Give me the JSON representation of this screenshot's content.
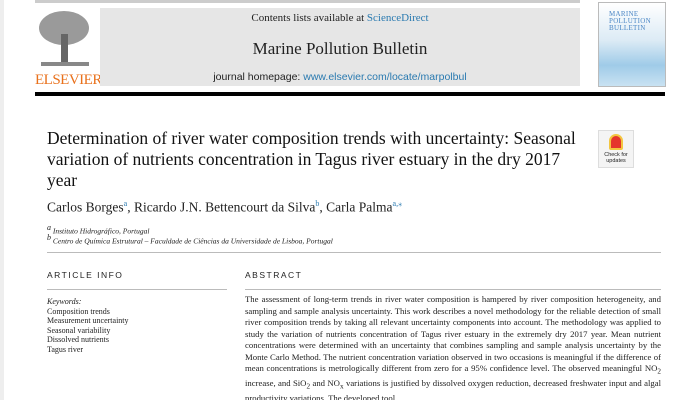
{
  "header": {
    "contents_prefix": "Contents lists available at ",
    "sciencedirect": "ScienceDirect",
    "journal_title": "Marine Pollution Bulletin",
    "homepage_label": "journal homepage: ",
    "homepage_url": "www.elsevier.com/locate/marpolbul",
    "publisher": "ELSEVIER",
    "cover_title": "MARINE POLLUTION BULLETIN"
  },
  "colors": {
    "elsevier_orange": "#e9711c",
    "link_blue": "#2a7ab0"
  },
  "article": {
    "title": "Determination of river water composition trends with uncertainty: Seasonal variation of nutrients concentration in Tagus river estuary in the dry 2017 year",
    "check_updates": "Check for updates",
    "authors": [
      {
        "name": "Carlos Borges",
        "sup": "a"
      },
      {
        "name": "Ricardo J.N. Bettencourt da Silva",
        "sup": "b"
      },
      {
        "name": "Carla Palma",
        "sup": "a,⁎"
      }
    ],
    "affiliations": [
      {
        "sup": "a",
        "text": "Instituto Hidrográfico, Portugal"
      },
      {
        "sup": "b",
        "text": "Centro de Química Estrutural – Faculdade de Ciências da Universidade de Lisboa, Portugal"
      }
    ],
    "article_info_heading": "ARTICLE INFO",
    "abstract_heading": "ABSTRACT",
    "keywords_label": "Keywords:",
    "keywords": [
      "Composition trends",
      "Measurement uncertainty",
      "Seasonal variability",
      "Dissolved nutrients",
      "Tagus river"
    ],
    "abstract": {
      "p1": "The assessment of long-term trends in river water composition is hampered by river composition heterogeneity, and sampling and sample analysis uncertainty. This work describes a novel methodology for the reliable detection of small river composition trends by taking all relevant uncertainty components into account. The methodology was applied to study the variation of nutrients concentration of Tagus river estuary in the extremely dry 2017 year. Mean nutrient concentrations were determined with an uncertainty that combines sampling and sample analysis uncertainty by the Monte Carlo Method. The nutrient concentration variation observed in two occasions is meaningful if the difference of mean concentrations is metrologically different from zero for a 95% confidence level. The observed meaningful NO",
      "sub1": "2",
      "p2": " increase, and SiO",
      "sub2": "2",
      "p3": " and NO",
      "sub3": "x",
      "p4": " variations is justified by dissolved oxygen reduction, decreased freshwater input and algal productivity variations. The developed tool"
    }
  }
}
